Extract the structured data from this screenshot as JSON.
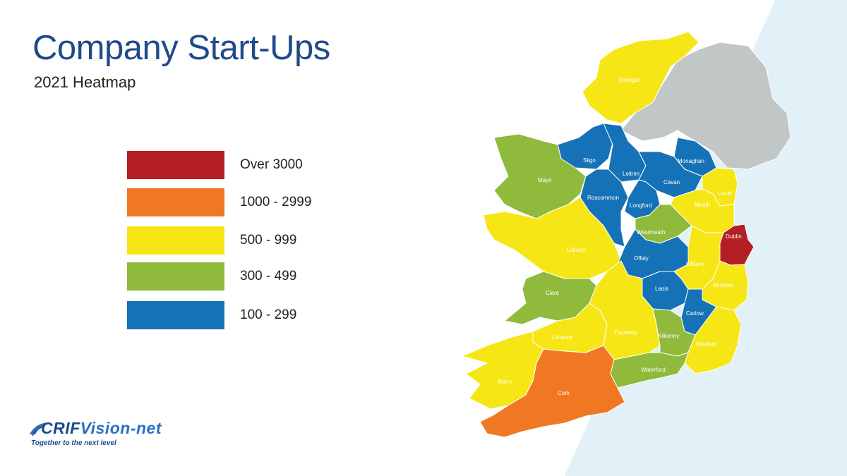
{
  "title": "Company Start-Ups",
  "subtitle": "2021 Heatmap",
  "colors": {
    "over_3000": "#b41f24",
    "r1000_2999": "#f07822",
    "r500_999": "#f7e616",
    "r300_499": "#8fba3c",
    "r100_299": "#1572b6",
    "northern_ireland": "#c1c7c7",
    "sea": "#e2f0f7"
  },
  "legend": [
    {
      "label": "Over 3000",
      "color": "#b41f24"
    },
    {
      "label": "1000 - 2999",
      "color": "#f07822"
    },
    {
      "label": "500 - 999",
      "color": "#f7e616"
    },
    {
      "label": "300 - 499",
      "color": "#8fba3c"
    },
    {
      "label": "100 - 299",
      "color": "#1572b6"
    }
  ],
  "counties": [
    {
      "name": "Donegal",
      "range": "500 - 999"
    },
    {
      "name": "Sligo",
      "range": "100 - 299"
    },
    {
      "name": "Leitrim",
      "range": "100 - 299"
    },
    {
      "name": "Monaghan",
      "range": "100 - 299"
    },
    {
      "name": "Cavan",
      "range": "100 - 299"
    },
    {
      "name": "Mayo",
      "range": "300 - 499"
    },
    {
      "name": "Roscommon",
      "range": "100 - 299"
    },
    {
      "name": "Longford",
      "range": "100 - 299"
    },
    {
      "name": "Louth",
      "range": "500 - 999"
    },
    {
      "name": "Meath",
      "range": "500 - 999"
    },
    {
      "name": "Westmeath",
      "range": "300 - 499"
    },
    {
      "name": "Dublin",
      "range": "Over 3000"
    },
    {
      "name": "Galway",
      "range": "500 - 999"
    },
    {
      "name": "Offaly",
      "range": "100 - 299"
    },
    {
      "name": "Kildare",
      "range": "500 - 999"
    },
    {
      "name": "Laois",
      "range": "100 - 299"
    },
    {
      "name": "Wicklow",
      "range": "500 - 999"
    },
    {
      "name": "Clare",
      "range": "300 - 499"
    },
    {
      "name": "Carlow",
      "range": "100 - 299"
    },
    {
      "name": "Limerick",
      "range": "500 - 999"
    },
    {
      "name": "Tipperary",
      "range": "500 - 999"
    },
    {
      "name": "Kilkenny",
      "range": "300 - 499"
    },
    {
      "name": "Wexford",
      "range": "500 - 999"
    },
    {
      "name": "Waterford",
      "range": "300 - 499"
    },
    {
      "name": "Kerry",
      "range": "500 - 999"
    },
    {
      "name": "Cork",
      "range": "1000 - 2999"
    }
  ],
  "logo": {
    "brand_prefix": "CRIF",
    "brand_suffix": "Vision-net",
    "tagline": "Together to the next level"
  }
}
